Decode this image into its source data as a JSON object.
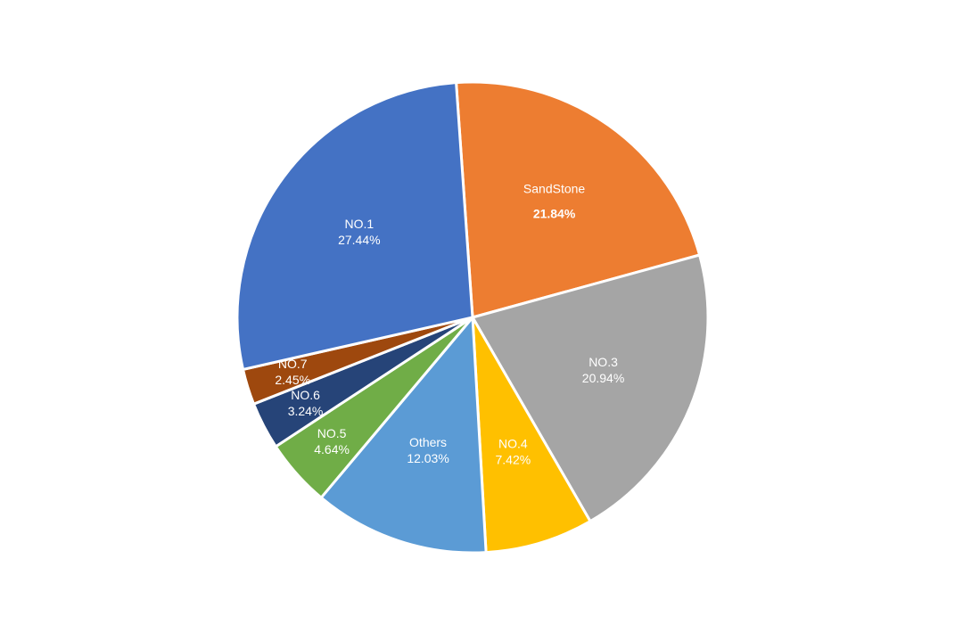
{
  "chart_data": {
    "type": "pie",
    "categories": [
      "SandStone",
      "NO.3",
      "NO.4",
      "Others",
      "NO.5",
      "NO.6",
      "NO.7",
      "NO.1"
    ],
    "values": [
      21.84,
      20.94,
      7.42,
      12.03,
      4.64,
      3.24,
      2.45,
      27.44
    ],
    "value_labels": [
      "21.84%",
      "20.94%",
      "7.42%",
      "12.03%",
      "4.64%",
      "3.24%",
      "2.45%",
      "27.44%"
    ],
    "colors": [
      "#ed7d31",
      "#a5a5a5",
      "#ffc000",
      "#5b9bd5",
      "#70ad47",
      "#264478",
      "#9e480e",
      "#4472c4"
    ]
  }
}
